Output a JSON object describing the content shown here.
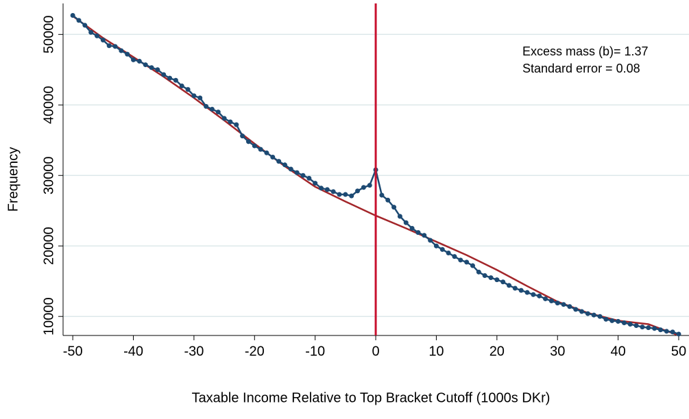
{
  "chart_data": {
    "type": "line",
    "xlabel": "Taxable Income Relative to Top Bracket Cutoff (1000s DKr)",
    "ylabel": "Frequency",
    "annotations": [
      "Excess mass (b)= 1.37",
      "Standard error = 0.08"
    ],
    "x": [
      -50,
      -49,
      -48,
      -47,
      -46,
      -45,
      -44,
      -43,
      -42,
      -41,
      -40,
      -39,
      -38,
      -37,
      -36,
      -35,
      -34,
      -33,
      -32,
      -31,
      -30,
      -29,
      -28,
      -27,
      -26,
      -25,
      -24,
      -23,
      -22,
      -21,
      -20,
      -19,
      -18,
      -17,
      -16,
      -15,
      -14,
      -13,
      -12,
      -11,
      -10,
      -9,
      -8,
      -7,
      -6,
      -5,
      -4,
      -3,
      -2,
      -1,
      0,
      1,
      2,
      3,
      4,
      5,
      6,
      7,
      8,
      9,
      10,
      11,
      12,
      13,
      14,
      15,
      16,
      17,
      18,
      19,
      20,
      21,
      22,
      23,
      24,
      25,
      26,
      27,
      28,
      29,
      30,
      31,
      32,
      33,
      34,
      35,
      36,
      37,
      38,
      39,
      40,
      41,
      42,
      43,
      44,
      45,
      46,
      47,
      48,
      49,
      50
    ],
    "series": [
      {
        "color": "#1d4a73",
        "markers": true,
        "values": [
          52700,
          52000,
          51300,
          50300,
          49800,
          49200,
          48400,
          48300,
          47700,
          47200,
          46400,
          46200,
          45700,
          45300,
          45000,
          44300,
          43800,
          43500,
          42700,
          42200,
          41300,
          41000,
          39800,
          39400,
          39000,
          38100,
          37600,
          37200,
          35600,
          34800,
          34200,
          33700,
          33200,
          32600,
          32000,
          31500,
          30900,
          30400,
          30000,
          29600,
          28900,
          28200,
          28000,
          27700,
          27300,
          27300,
          27100,
          27800,
          28300,
          28600,
          30800,
          27200,
          26500,
          25500,
          24200,
          23300,
          22500,
          21900,
          21500,
          20800,
          20000,
          19500,
          19000,
          18500,
          18000,
          17700,
          17200,
          16300,
          15800,
          15500,
          15200,
          14900,
          14400,
          14000,
          13700,
          13400,
          13100,
          12900,
          12500,
          12200,
          11900,
          11700,
          11400,
          11000,
          10700,
          10400,
          10200,
          10000,
          9600,
          9400,
          9300,
          9100,
          8900,
          8700,
          8500,
          8400,
          8300,
          8100,
          7900,
          7800,
          7500
        ]
      },
      {
        "color": "#a3262a",
        "markers": false,
        "x": [
          -50,
          -45,
          -40,
          -35,
          -30,
          -25,
          -20,
          -15,
          -10,
          -5,
          0,
          5,
          10,
          15,
          20,
          25,
          30,
          35,
          40,
          45,
          50
        ],
        "values": [
          52600,
          49500,
          46800,
          44000,
          41000,
          37800,
          34500,
          31300,
          28400,
          26300,
          24300,
          22500,
          20600,
          18700,
          16600,
          14300,
          12100,
          10500,
          9400,
          8900,
          7300
        ]
      }
    ],
    "vline": {
      "x": 0,
      "color": "#c8102e"
    },
    "xlim": [
      -51.6,
      51.7
    ],
    "ylim": [
      7300,
      54400
    ],
    "xticks": [
      -50,
      -40,
      -30,
      -20,
      -10,
      0,
      10,
      20,
      30,
      40,
      50
    ],
    "yticks": [
      10000,
      20000,
      30000,
      40000,
      50000
    ],
    "grid": true
  }
}
